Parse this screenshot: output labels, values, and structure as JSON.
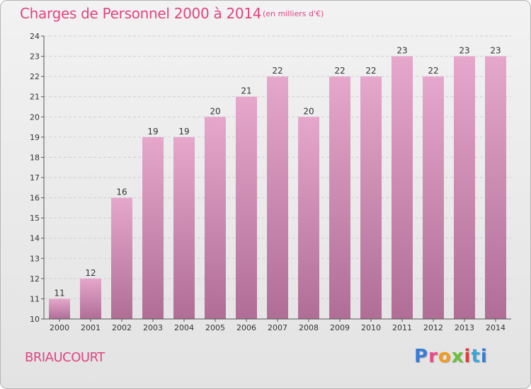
{
  "header": {
    "title": "Charges de Personnel 2000 à 2014",
    "subtitle": "(en milliers d'€)"
  },
  "footer": {
    "commune": "BRIAUCOURT",
    "brand_letters": [
      "P",
      "r",
      "o",
      "x",
      "i",
      "t",
      "i"
    ]
  },
  "colors": {
    "bar_top": "#e6a7cc",
    "bar_bottom": "#b06e96",
    "accent": "#e0457f"
  },
  "chart_data": {
    "type": "bar",
    "title": "Charges de Personnel 2000 à 2014",
    "subtitle": "(en milliers d'€)",
    "xlabel": "",
    "ylabel": "",
    "categories": [
      "2000",
      "2001",
      "2002",
      "2003",
      "2004",
      "2005",
      "2006",
      "2007",
      "2008",
      "2009",
      "2010",
      "2011",
      "2012",
      "2013",
      "2014"
    ],
    "values": [
      11,
      12,
      16,
      19,
      19,
      20,
      21,
      22,
      20,
      22,
      22,
      23,
      22,
      23,
      23
    ],
    "ylim": [
      10,
      24
    ],
    "yticks": [
      10,
      11,
      12,
      13,
      14,
      15,
      16,
      17,
      18,
      19,
      20,
      21,
      22,
      23,
      24
    ],
    "grid": true,
    "legend": "none"
  }
}
